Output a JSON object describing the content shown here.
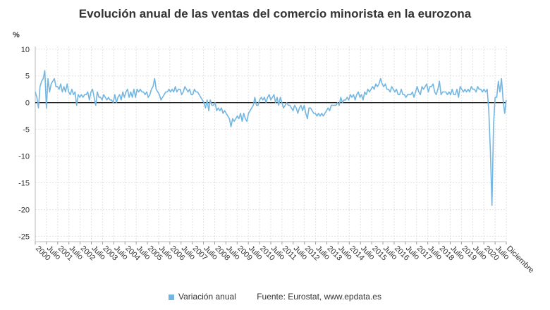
{
  "title": "Evolución anual de las ventas del comercio minorista en la eurozona",
  "footer": {
    "legend_label": "Variación anual",
    "source": "Fuente: Eurostat, www.epdata.es"
  },
  "colors": {
    "series": "#74b6e0",
    "grid": "#e2e2e2",
    "zero_line": "#222222"
  },
  "chart_data": {
    "type": "line",
    "title": "Evolución anual de las ventas del comercio minorista en la eurozona",
    "ylabel": "%",
    "xlabel": "",
    "ylim": [
      -26,
      10.5
    ],
    "yticks": [
      10,
      5,
      0,
      -5,
      -10,
      -15,
      -20,
      -25
    ],
    "grid": true,
    "legend_position": "bottom",
    "x_start": "2000-01",
    "x_end": "2020-12",
    "x_tick_labels": [
      "2000",
      "Julio",
      "2001",
      "Julio",
      "2002",
      "Julio",
      "2003",
      "Julio",
      "2004",
      "Julio",
      "2005",
      "Julio",
      "2006",
      "Julio",
      "2007",
      "Julio",
      "2008",
      "Julio",
      "2009",
      "Julio",
      "2010",
      "Julio",
      "2011",
      "Julio",
      "2012",
      "Julio",
      "2013",
      "Julio",
      "2014",
      "Julio",
      "2015",
      "Julio",
      "2016",
      "Julio",
      "2017",
      "Julio",
      "2018",
      "Julio",
      "2019",
      "Julio",
      "2020",
      "Julio",
      "Diciembre"
    ],
    "series": [
      {
        "name": "Variación anual",
        "values": [
          2.0,
          1.0,
          -1.0,
          3.0,
          4.0,
          4.5,
          6.0,
          -1.0,
          4.5,
          2.0,
          3.5,
          4.0,
          4.5,
          3.0,
          3.0,
          2.5,
          3.5,
          2.0,
          3.0,
          2.0,
          3.5,
          2.0,
          1.5,
          2.5,
          1.5,
          2.0,
          -0.5,
          1.5,
          1.0,
          1.5,
          1.0,
          1.5,
          1.5,
          2.0,
          0.5,
          2.0,
          2.5,
          1.0,
          -0.5,
          2.0,
          1.0,
          1.0,
          0.5,
          1.5,
          1.0,
          0.5,
          1.0,
          0.5,
          0.5,
          0.0,
          1.5,
          0.0,
          1.0,
          1.5,
          0.5,
          2.0,
          1.0,
          2.0,
          2.5,
          1.0,
          2.0,
          1.0,
          2.5,
          1.0,
          2.5,
          2.0,
          2.5,
          2.0,
          2.0,
          1.5,
          2.0,
          1.0,
          1.5,
          2.5,
          3.0,
          4.5,
          2.5,
          2.0,
          1.5,
          0.5,
          1.0,
          1.5,
          2.0,
          2.0,
          2.5,
          2.0,
          2.5,
          2.0,
          3.0,
          2.0,
          2.5,
          2.5,
          1.5,
          2.0,
          3.0,
          2.5,
          2.0,
          2.5,
          1.5,
          1.5,
          2.5,
          2.0,
          2.0,
          1.5,
          1.0,
          0.5,
          0.0,
          -1.0,
          0.5,
          -1.5,
          0.5,
          -0.5,
          -0.5,
          0.0,
          -1.5,
          -1.0,
          -1.5,
          -1.0,
          -2.0,
          -1.5,
          -2.0,
          -2.5,
          -3.0,
          -4.5,
          -3.0,
          -3.5,
          -3.0,
          -2.5,
          -3.0,
          -2.0,
          -3.5,
          -2.0,
          -3.0,
          -3.5,
          -2.0,
          -1.5,
          -1.0,
          -0.5,
          1.0,
          -0.5,
          -0.5,
          0.5,
          1.0,
          0.5,
          1.0,
          0.0,
          1.0,
          1.5,
          0.5,
          1.0,
          1.5,
          0.0,
          1.0,
          -0.5,
          1.0,
          0.0,
          -1.0,
          -0.5,
          0.0,
          -0.5,
          -0.5,
          -1.0,
          -1.5,
          -0.5,
          -1.0,
          -2.0,
          -1.0,
          -0.5,
          -1.5,
          -0.5,
          -2.0,
          -3.0,
          -1.0,
          -1.0,
          -1.5,
          -2.0,
          -2.0,
          -2.5,
          -2.0,
          -2.5,
          -2.0,
          -2.5,
          -2.0,
          -1.5,
          -1.0,
          -1.5,
          -0.5,
          -0.5,
          -0.5,
          -0.5,
          0.0,
          -0.5,
          1.0,
          0.0,
          0.5,
          0.5,
          1.0,
          0.5,
          1.5,
          1.0,
          1.5,
          0.5,
          1.5,
          2.0,
          1.0,
          1.5,
          0.5,
          2.0,
          1.5,
          2.5,
          2.0,
          2.5,
          3.0,
          2.5,
          3.5,
          3.0,
          3.5,
          4.5,
          3.5,
          3.0,
          3.5,
          2.5,
          2.5,
          2.0,
          3.0,
          2.5,
          2.0,
          2.5,
          1.5,
          1.5,
          2.5,
          1.5,
          1.5,
          1.0,
          1.5,
          1.5,
          1.5,
          2.0,
          1.0,
          2.0,
          3.0,
          2.0,
          1.5,
          3.0,
          2.5,
          3.0,
          3.5,
          2.0,
          3.0,
          3.0,
          3.5,
          2.0,
          1.5,
          2.5,
          4.0,
          1.5,
          2.0,
          2.0,
          2.0,
          1.5,
          2.0,
          1.5,
          2.5,
          1.5,
          1.5,
          2.5,
          1.0,
          3.0,
          2.5,
          2.0,
          2.5,
          2.0,
          2.5,
          2.0,
          3.0,
          2.5,
          2.5,
          2.0,
          3.0,
          2.5,
          2.5,
          2.0,
          2.5,
          2.0,
          2.5,
          -1.5,
          -9.0,
          -19.2,
          -4.0,
          1.0,
          1.0,
          4.0,
          2.0,
          4.5,
          0.5,
          -2.0,
          0.5
        ]
      }
    ]
  }
}
